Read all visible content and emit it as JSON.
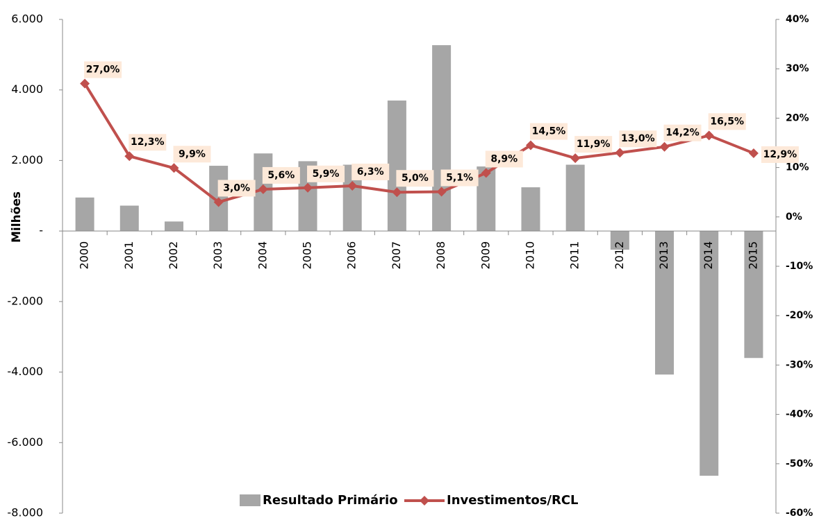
{
  "chart_data": {
    "type": "bar-line",
    "y_axis_label": "Milhões",
    "categories": [
      "2000",
      "2001",
      "2002",
      "2003",
      "2004",
      "2005",
      "2006",
      "2007",
      "2008",
      "2009",
      "2010",
      "2011",
      "2012",
      "2013",
      "2014",
      "2015"
    ],
    "series": [
      {
        "name": "Resultado Primário",
        "type": "bar",
        "color": "#a6a6a6",
        "axis": "y",
        "values": [
          950,
          720,
          270,
          1850,
          2200,
          1980,
          1880,
          3700,
          5270,
          1830,
          1240,
          1880,
          -530,
          -4070,
          -6940,
          -3600
        ]
      },
      {
        "name": "Investimentos/RCL",
        "type": "line",
        "color": "#c0504d",
        "axis": "y2",
        "values": [
          27.0,
          12.3,
          9.9,
          3.0,
          5.6,
          5.9,
          6.3,
          5.0,
          5.1,
          8.9,
          14.5,
          11.9,
          13.0,
          14.2,
          16.5,
          12.9
        ],
        "value_labels": [
          "27,0%",
          "12,3%",
          "9,9%",
          "3,0%",
          "5,6%",
          "5,9%",
          "6,3%",
          "5,0%",
          "5,1%",
          "8,9%",
          "14,5%",
          "11,9%",
          "13,0%",
          "14,2%",
          "16,5%",
          "12,9%"
        ]
      }
    ],
    "ylim": [
      -8000,
      6000
    ],
    "yticks": [
      {
        "value": 6000,
        "label": "6.000"
      },
      {
        "value": 4000,
        "label": "4.000"
      },
      {
        "value": 2000,
        "label": "2.000"
      },
      {
        "value": 0,
        "label": "-"
      },
      {
        "value": -2000,
        "label": "-2.000"
      },
      {
        "value": -4000,
        "label": "-4.000"
      },
      {
        "value": -6000,
        "label": "-6.000"
      },
      {
        "value": -8000,
        "label": "-8.000"
      }
    ],
    "y2lim": [
      -60,
      40
    ],
    "y2ticks": [
      {
        "value": 40,
        "label": "40%"
      },
      {
        "value": 30,
        "label": "30%"
      },
      {
        "value": 20,
        "label": "20%"
      },
      {
        "value": 10,
        "label": "10%"
      },
      {
        "value": 0,
        "label": "0%"
      },
      {
        "value": -10,
        "label": "-10%"
      },
      {
        "value": -20,
        "label": "-20%"
      },
      {
        "value": -30,
        "label": "-30%"
      },
      {
        "value": -40,
        "label": "-40%"
      },
      {
        "value": -50,
        "label": "-50%"
      },
      {
        "value": -60,
        "label": "-60%"
      }
    ],
    "legend": "bottom"
  }
}
